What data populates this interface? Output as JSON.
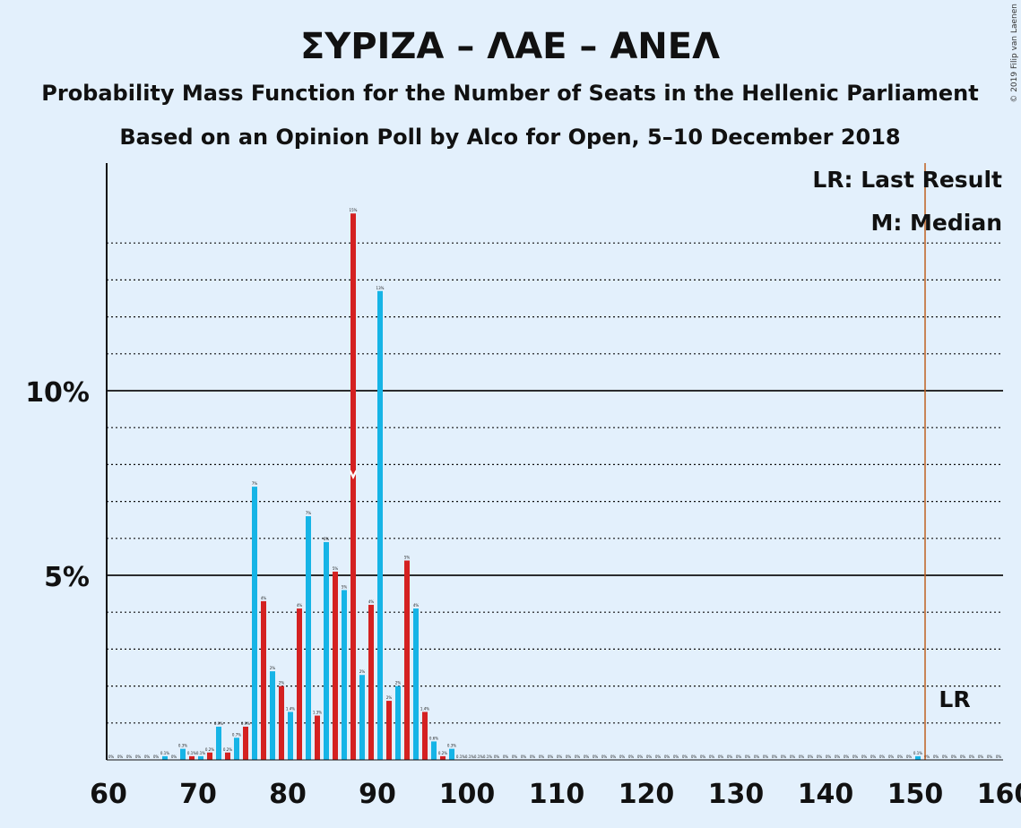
{
  "title": "ΣΥΡΙΖΑ – ΛΑΕ – ΑΝΕΛ",
  "subtitle1": "Probability Mass Function for the Number of Seats in the Hellenic Parliament",
  "subtitle2": "Based on an Opinion Poll by Alco for Open, 5–10 December 2018",
  "copyright": "© 2019 Filip van Laenen",
  "legend": {
    "last_result": "LR: Last Result",
    "median": "M: Median",
    "lr_marker": "LR"
  },
  "colors": {
    "background": "#e3f0fc",
    "red": "#d42121",
    "blue": "#16b4e6",
    "lr_line": "#c06020",
    "axis": "#111111"
  },
  "chart_data": {
    "type": "bar",
    "xlabel": "",
    "ylabel": "",
    "xlim": [
      60,
      160
    ],
    "ylim": [
      0,
      16
    ],
    "x_ticks": [
      "60",
      "70",
      "80",
      "90",
      "100",
      "110",
      "120",
      "130",
      "140",
      "150",
      "160"
    ],
    "y_ticks": [
      {
        "value": 5,
        "label": "5%"
      },
      {
        "value": 10,
        "label": "10%"
      }
    ],
    "grid": "dotted lines every 1%, solid at 5% and 10%",
    "last_result": 151,
    "median": 87,
    "series": [
      {
        "values": [
          {
            "x": 60,
            "y": 0.0,
            "label": "0%"
          },
          {
            "x": 61,
            "y": 0.0,
            "label": "0%"
          },
          {
            "x": 62,
            "y": 0.0,
            "label": "0%"
          },
          {
            "x": 63,
            "y": 0.0,
            "label": "0%"
          },
          {
            "x": 64,
            "y": 0.0,
            "label": "0%"
          },
          {
            "x": 65,
            "y": 0.0,
            "label": "0%"
          },
          {
            "x": 66,
            "y": 0.1,
            "label": "0.1%"
          },
          {
            "x": 67,
            "y": 0.0,
            "label": "0%"
          },
          {
            "x": 68,
            "y": 0.3,
            "label": "0.3%"
          },
          {
            "x": 69,
            "y": 0.1,
            "label": "0.1%"
          },
          {
            "x": 70,
            "y": 0.1,
            "label": "0.1%"
          },
          {
            "x": 71,
            "y": 0.2,
            "label": "0.2%"
          },
          {
            "x": 72,
            "y": 0.9,
            "label": "0.9%"
          },
          {
            "x": 73,
            "y": 0.2,
            "label": "0.2%"
          },
          {
            "x": 74,
            "y": 0.6,
            "label": "0.7%"
          },
          {
            "x": 75,
            "y": 0.9,
            "label": "0.9%"
          },
          {
            "x": 76,
            "y": 7.4,
            "label": "7%"
          },
          {
            "x": 77,
            "y": 4.3,
            "label": "4%"
          },
          {
            "x": 78,
            "y": 2.4,
            "label": "2%"
          },
          {
            "x": 79,
            "y": 2.0,
            "label": "2%"
          },
          {
            "x": 80,
            "y": 1.3,
            "label": "1.4%"
          },
          {
            "x": 81,
            "y": 4.1,
            "label": "4%"
          },
          {
            "x": 82,
            "y": 6.6,
            "label": "7%"
          },
          {
            "x": 83,
            "y": 1.2,
            "label": "1.3%"
          },
          {
            "x": 84,
            "y": 5.9,
            "label": "6%"
          },
          {
            "x": 85,
            "y": 5.1,
            "label": "5%"
          },
          {
            "x": 86,
            "y": 4.6,
            "label": "5%"
          },
          {
            "x": 87,
            "y": 14.8,
            "label": "15%"
          },
          {
            "x": 88,
            "y": 2.3,
            "label": "2%"
          },
          {
            "x": 89,
            "y": 4.2,
            "label": "4%"
          },
          {
            "x": 90,
            "y": 12.7,
            "label": "13%"
          },
          {
            "x": 91,
            "y": 1.6,
            "label": "2%"
          },
          {
            "x": 92,
            "y": 2.0,
            "label": "2%"
          },
          {
            "x": 93,
            "y": 5.4,
            "label": "5%"
          },
          {
            "x": 94,
            "y": 4.1,
            "label": "4%"
          },
          {
            "x": 95,
            "y": 1.3,
            "label": "1.4%"
          },
          {
            "x": 96,
            "y": 0.5,
            "label": "0.6%"
          },
          {
            "x": 97,
            "y": 0.1,
            "label": "0.2%"
          },
          {
            "x": 98,
            "y": 0.3,
            "label": "0.3%"
          },
          {
            "x": 99,
            "y": 0.0,
            "label": "0.1%"
          },
          {
            "x": 100,
            "y": 0.0,
            "label": "0.1%"
          },
          {
            "x": 101,
            "y": 0.0,
            "label": "0.1%"
          },
          {
            "x": 102,
            "y": 0.0,
            "label": "0.1%"
          },
          {
            "x": 103,
            "y": 0.0,
            "label": "0%"
          },
          {
            "x": 104,
            "y": 0.0,
            "label": "0%"
          },
          {
            "x": 105,
            "y": 0.0,
            "label": "0%"
          },
          {
            "x": 106,
            "y": 0.0,
            "label": "0%"
          },
          {
            "x": 107,
            "y": 0.0,
            "label": "0%"
          },
          {
            "x": 108,
            "y": 0.0,
            "label": "0%"
          },
          {
            "x": 109,
            "y": 0.0,
            "label": "0%"
          },
          {
            "x": 110,
            "y": 0.0,
            "label": "0%"
          },
          {
            "x": 111,
            "y": 0.0,
            "label": "0%"
          },
          {
            "x": 112,
            "y": 0.0,
            "label": "0%"
          },
          {
            "x": 113,
            "y": 0.0,
            "label": "0%"
          },
          {
            "x": 114,
            "y": 0.0,
            "label": "0%"
          },
          {
            "x": 115,
            "y": 0.0,
            "label": "0%"
          },
          {
            "x": 116,
            "y": 0.0,
            "label": "0%"
          },
          {
            "x": 117,
            "y": 0.0,
            "label": "0%"
          },
          {
            "x": 118,
            "y": 0.0,
            "label": "0%"
          },
          {
            "x": 119,
            "y": 0.0,
            "label": "0%"
          },
          {
            "x": 120,
            "y": 0.0,
            "label": "0%"
          },
          {
            "x": 121,
            "y": 0.0,
            "label": "0%"
          },
          {
            "x": 122,
            "y": 0.0,
            "label": "0%"
          },
          {
            "x": 123,
            "y": 0.0,
            "label": "0%"
          },
          {
            "x": 124,
            "y": 0.0,
            "label": "0%"
          },
          {
            "x": 125,
            "y": 0.0,
            "label": "0%"
          },
          {
            "x": 126,
            "y": 0.0,
            "label": "0%"
          },
          {
            "x": 127,
            "y": 0.0,
            "label": "0%"
          },
          {
            "x": 128,
            "y": 0.0,
            "label": "0%"
          },
          {
            "x": 129,
            "y": 0.0,
            "label": "0%"
          },
          {
            "x": 130,
            "y": 0.0,
            "label": "0%"
          },
          {
            "x": 131,
            "y": 0.0,
            "label": "0%"
          },
          {
            "x": 132,
            "y": 0.0,
            "label": "0%"
          },
          {
            "x": 133,
            "y": 0.0,
            "label": "0%"
          },
          {
            "x": 134,
            "y": 0.0,
            "label": "0%"
          },
          {
            "x": 135,
            "y": 0.0,
            "label": "0%"
          },
          {
            "x": 136,
            "y": 0.0,
            "label": "0%"
          },
          {
            "x": 137,
            "y": 0.0,
            "label": "0%"
          },
          {
            "x": 138,
            "y": 0.0,
            "label": "0%"
          },
          {
            "x": 139,
            "y": 0.0,
            "label": "0%"
          },
          {
            "x": 140,
            "y": 0.0,
            "label": "0%"
          },
          {
            "x": 141,
            "y": 0.0,
            "label": "0%"
          },
          {
            "x": 142,
            "y": 0.0,
            "label": "0%"
          },
          {
            "x": 143,
            "y": 0.0,
            "label": "0%"
          },
          {
            "x": 144,
            "y": 0.0,
            "label": "0%"
          },
          {
            "x": 145,
            "y": 0.0,
            "label": "0%"
          },
          {
            "x": 146,
            "y": 0.0,
            "label": "0%"
          },
          {
            "x": 147,
            "y": 0.0,
            "label": "0%"
          },
          {
            "x": 148,
            "y": 0.0,
            "label": "0%"
          },
          {
            "x": 149,
            "y": 0.0,
            "label": "0%"
          },
          {
            "x": 150,
            "y": 0.1,
            "label": "0.1%"
          },
          {
            "x": 151,
            "y": 0.0,
            "label": "0%"
          },
          {
            "x": 152,
            "y": 0.0,
            "label": "0%"
          },
          {
            "x": 153,
            "y": 0.0,
            "label": "0%"
          },
          {
            "x": 154,
            "y": 0.0,
            "label": "0%"
          },
          {
            "x": 155,
            "y": 0.0,
            "label": "0%"
          },
          {
            "x": 156,
            "y": 0.0,
            "label": "0%"
          },
          {
            "x": 157,
            "y": 0.0,
            "label": "0%"
          },
          {
            "x": 158,
            "y": 0.0,
            "label": "0%"
          },
          {
            "x": 159,
            "y": 0.0,
            "label": "0%"
          }
        ]
      }
    ]
  }
}
